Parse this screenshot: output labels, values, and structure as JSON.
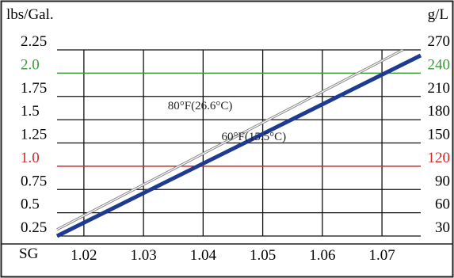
{
  "chart_data": {
    "type": "line",
    "left_axis_label": "lbs/Gal.",
    "right_axis_label": "g/L",
    "x_axis_label": "SG",
    "x_ticks": [
      "1.02",
      "1.03",
      "1.04",
      "1.05",
      "1.06",
      "1.07"
    ],
    "x_tick_values": [
      1.02,
      1.03,
      1.04,
      1.05,
      1.06,
      1.07
    ],
    "xlim": [
      1.0155,
      1.0765
    ],
    "ylim": [
      0.25,
      2.25
    ],
    "left_ticks": [
      {
        "label": "2.25",
        "value": 2.25,
        "color": "#000000"
      },
      {
        "label": "2.0",
        "value": 2.0,
        "color": "#3a9a3a"
      },
      {
        "label": "1.75",
        "value": 1.75,
        "color": "#000000"
      },
      {
        "label": "1.5",
        "value": 1.5,
        "color": "#000000"
      },
      {
        "label": "1.25",
        "value": 1.25,
        "color": "#000000"
      },
      {
        "label": "1.0",
        "value": 1.0,
        "color": "#cc2b2b"
      },
      {
        "label": "0.75",
        "value": 0.75,
        "color": "#000000"
      },
      {
        "label": "0.5",
        "value": 0.5,
        "color": "#000000"
      },
      {
        "label": "0.25",
        "value": 0.25,
        "color": "#000000"
      }
    ],
    "right_ticks": [
      {
        "label": "270",
        "value": 270,
        "color": "#000000"
      },
      {
        "label": "240",
        "value": 240,
        "color": "#3a9a3a"
      },
      {
        "label": "210",
        "value": 210,
        "color": "#000000"
      },
      {
        "label": "180",
        "value": 180,
        "color": "#000000"
      },
      {
        "label": "150",
        "value": 150,
        "color": "#000000"
      },
      {
        "label": "120",
        "value": 120,
        "color": "#cc2b2b"
      },
      {
        "label": "90",
        "value": 90,
        "color": "#000000"
      },
      {
        "label": "60",
        "value": 60,
        "color": "#000000"
      },
      {
        "label": "30",
        "value": 30,
        "color": "#000000"
      }
    ],
    "reference_lines": [
      {
        "value": 2.0,
        "color": "#3a9a3a"
      },
      {
        "value": 1.0,
        "color": "#cc2b2b"
      }
    ],
    "series": [
      {
        "name": "80°F(26.6°C)",
        "color": "#888888",
        "points": [
          [
            1.0155,
            0.32
          ],
          [
            1.0735,
            2.25
          ]
        ]
      },
      {
        "name": "60°F(15.5°C)",
        "color": "#1f3a93",
        "points": [
          [
            1.0155,
            0.25
          ],
          [
            1.0765,
            2.19
          ]
        ]
      }
    ],
    "annotations": [
      {
        "text": "80°F(26.6°C)",
        "x": 1.0395,
        "y": 1.61
      },
      {
        "text": "60°F(15.5°C)",
        "x": 1.0485,
        "y": 1.28
      }
    ],
    "grid": true
  }
}
